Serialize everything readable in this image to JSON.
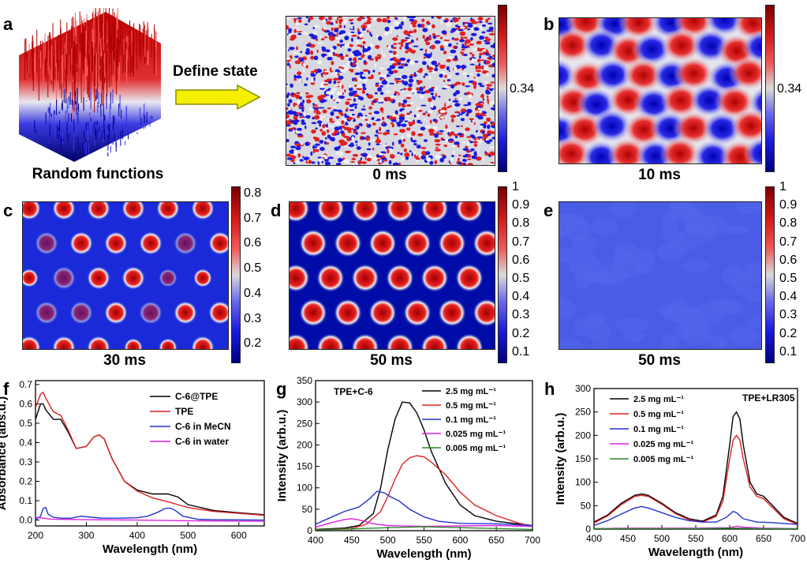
{
  "panel_labels": {
    "a": "a",
    "b": "b",
    "c": "c",
    "d": "d",
    "e": "e",
    "f": "f",
    "g": "g",
    "h": "h"
  },
  "panel_a": {
    "surface_caption": "Random functions",
    "arrow_label": "Define state",
    "map_caption": "0 ms",
    "colorbar_label": "0.34"
  },
  "panel_b": {
    "caption": "10 ms",
    "colorbar_label": "0.34"
  },
  "panel_c": {
    "caption": "30 ms",
    "colorbar_ticks": [
      "0.8",
      "0.7",
      "0.6",
      "0.5",
      "0.4",
      "0.3",
      "0.2"
    ]
  },
  "panel_d": {
    "caption": "50 ms",
    "colorbar_ticks": [
      "1",
      "0.9",
      "0.8",
      "0.7",
      "0.6",
      "0.5",
      "0.4",
      "0.3",
      "0.2",
      "0.1"
    ]
  },
  "panel_e": {
    "caption": "50 ms",
    "colorbar_ticks": [
      "1",
      "0.9",
      "0.8",
      "0.7",
      "0.6",
      "0.5",
      "0.4",
      "0.3",
      "0.2",
      "0.1"
    ]
  },
  "chart_data": [
    {
      "id": "f",
      "type": "line",
      "xlabel": "Wavelength (nm)",
      "ylabel": "Absorbance (abs.u.)",
      "xlim": [
        200,
        650
      ],
      "ylim": [
        -0.03,
        0.72
      ],
      "xticks": [
        200,
        300,
        400,
        500,
        600
      ],
      "yticks": [
        0.0,
        0.1,
        0.2,
        0.3,
        0.4,
        0.5,
        0.6,
        0.7
      ],
      "ytick_labels": [
        "0.0",
        "0.1",
        "0.2",
        "0.3",
        "0.4",
        "0.5",
        "0.6",
        "0.7"
      ],
      "legend_position": "top-right",
      "series": [
        {
          "name": "C-6@TPE",
          "color": "#000000",
          "x": [
            200,
            210,
            215,
            220,
            235,
            250,
            265,
            280,
            300,
            315,
            325,
            335,
            350,
            375,
            400,
            430,
            460,
            480,
            500,
            550,
            600,
            650
          ],
          "y": [
            0.52,
            0.6,
            0.6,
            0.57,
            0.52,
            0.52,
            0.45,
            0.37,
            0.38,
            0.43,
            0.44,
            0.42,
            0.32,
            0.2,
            0.155,
            0.135,
            0.135,
            0.12,
            0.08,
            0.05,
            0.038,
            0.028
          ]
        },
        {
          "name": "TPE",
          "color": "#dd2222",
          "x": [
            200,
            210,
            215,
            220,
            235,
            250,
            265,
            280,
            300,
            315,
            325,
            335,
            350,
            375,
            400,
            430,
            460,
            480,
            500,
            550,
            600,
            650
          ],
          "y": [
            0.58,
            0.65,
            0.66,
            0.63,
            0.56,
            0.54,
            0.46,
            0.37,
            0.38,
            0.43,
            0.44,
            0.42,
            0.32,
            0.2,
            0.15,
            0.115,
            0.095,
            0.08,
            0.065,
            0.045,
            0.035,
            0.025
          ]
        },
        {
          "name": "C-6 in MeCN",
          "color": "#2233cc",
          "x": [
            200,
            210,
            215,
            220,
            225,
            235,
            250,
            270,
            290,
            310,
            330,
            360,
            400,
            420,
            440,
            455,
            465,
            475,
            490,
            520,
            550,
            650
          ],
          "y": [
            0.0,
            0.02,
            0.06,
            0.065,
            0.03,
            0.015,
            0.01,
            0.01,
            0.02,
            0.015,
            0.01,
            0.01,
            0.012,
            0.02,
            0.04,
            0.06,
            0.062,
            0.05,
            0.02,
            0.004,
            0.002,
            0.0
          ]
        },
        {
          "name": "C-6 in water",
          "color": "#dd22dd",
          "x": [
            200,
            230,
            300,
            400,
            500,
            600,
            650
          ],
          "y": [
            0.015,
            0.005,
            0.002,
            0.0,
            -0.003,
            -0.005,
            -0.006
          ]
        }
      ]
    },
    {
      "id": "g",
      "type": "line",
      "xlabel": "Wavelength (nm)",
      "ylabel": "Intensity (arb.u.)",
      "xlim": [
        400,
        700
      ],
      "ylim": [
        0,
        350
      ],
      "xticks": [
        400,
        450,
        500,
        550,
        600,
        650,
        700
      ],
      "yticks": [
        0,
        50,
        100,
        150,
        200,
        250,
        300,
        350
      ],
      "annotation": "TPE+C-6",
      "legend_position": "top-right",
      "series": [
        {
          "name": "2.5 mg mL⁻¹",
          "color": "#000000",
          "x": [
            400,
            440,
            460,
            480,
            490,
            500,
            510,
            520,
            530,
            540,
            550,
            560,
            580,
            600,
            620,
            650,
            700
          ],
          "y": [
            3,
            6,
            12,
            40,
            100,
            190,
            260,
            300,
            298,
            275,
            235,
            185,
            110,
            60,
            35,
            22,
            12
          ]
        },
        {
          "name": "0.5 mg mL⁻¹",
          "color": "#dd2222",
          "x": [
            400,
            450,
            470,
            490,
            500,
            510,
            520,
            530,
            540,
            550,
            560,
            580,
            600,
            620,
            650,
            680,
            700
          ],
          "y": [
            2,
            5,
            15,
            45,
            80,
            120,
            155,
            170,
            175,
            172,
            160,
            130,
            90,
            60,
            35,
            18,
            10
          ]
        },
        {
          "name": "0.1 mg mL⁻¹",
          "color": "#2233cc",
          "x": [
            400,
            420,
            440,
            460,
            475,
            485,
            495,
            505,
            515,
            530,
            550,
            570,
            600,
            650,
            700
          ],
          "y": [
            15,
            30,
            45,
            55,
            75,
            92,
            88,
            78,
            70,
            50,
            32,
            22,
            17,
            16,
            12
          ]
        },
        {
          "name": "0.025 mg mL⁻¹",
          "color": "#dd22dd",
          "x": [
            400,
            420,
            440,
            450,
            460,
            480,
            500,
            550,
            600,
            650,
            700
          ],
          "y": [
            8,
            18,
            26,
            28,
            25,
            16,
            12,
            10,
            11,
            12,
            10
          ]
        },
        {
          "name": "0.005 mg mL⁻¹",
          "color": "#2a8a2a",
          "x": [
            400,
            450,
            500,
            550,
            600,
            650,
            700
          ],
          "y": [
            2,
            4,
            7,
            9,
            7,
            5,
            3
          ]
        }
      ]
    },
    {
      "id": "h",
      "type": "line",
      "xlabel": "Wavelength (nm)",
      "ylabel": "Intensity (arb.u.)",
      "xlim": [
        400,
        700
      ],
      "ylim": [
        0,
        300
      ],
      "xticks": [
        400,
        450,
        500,
        550,
        600,
        650,
        700
      ],
      "yticks": [
        0,
        50,
        100,
        150,
        200,
        250,
        300
      ],
      "annotation": "TPE+LR305",
      "legend_position": "top-left",
      "series": [
        {
          "name": "2.5 mg mL⁻¹",
          "color": "#000000",
          "x": [
            400,
            420,
            440,
            460,
            470,
            480,
            500,
            520,
            540,
            560,
            580,
            590,
            600,
            605,
            610,
            615,
            620,
            630,
            640,
            650,
            660,
            680,
            700
          ],
          "y": [
            15,
            30,
            55,
            72,
            75,
            72,
            55,
            35,
            22,
            17,
            30,
            70,
            180,
            240,
            250,
            235,
            180,
            100,
            75,
            70,
            55,
            25,
            12
          ]
        },
        {
          "name": "0.5 mg mL⁻¹",
          "color": "#dd2222",
          "x": [
            400,
            420,
            440,
            460,
            470,
            480,
            500,
            520,
            540,
            560,
            580,
            590,
            600,
            605,
            610,
            615,
            620,
            630,
            640,
            650,
            660,
            680,
            700
          ],
          "y": [
            13,
            28,
            52,
            70,
            72,
            70,
            53,
            33,
            20,
            15,
            27,
            60,
            150,
            190,
            200,
            190,
            150,
            90,
            70,
            65,
            50,
            22,
            10
          ]
        },
        {
          "name": "0.1 mg mL⁻¹",
          "color": "#2233cc",
          "x": [
            400,
            420,
            440,
            460,
            470,
            480,
            500,
            520,
            540,
            560,
            580,
            595,
            605,
            610,
            620,
            640,
            660,
            680,
            700
          ],
          "y": [
            8,
            18,
            32,
            45,
            48,
            45,
            35,
            25,
            18,
            15,
            15,
            25,
            38,
            35,
            22,
            15,
            14,
            12,
            10
          ]
        },
        {
          "name": "0.025 mg mL⁻¹",
          "color": "#dd22dd",
          "x": [
            400,
            450,
            500,
            550,
            600,
            610,
            620,
            650,
            700
          ],
          "y": [
            1,
            2,
            2,
            2,
            3,
            6,
            4,
            2,
            1
          ]
        },
        {
          "name": "0.005 mg mL⁻¹",
          "color": "#2a8a2a",
          "x": [
            400,
            450,
            500,
            550,
            600,
            650,
            700
          ],
          "y": [
            1,
            1,
            1,
            1,
            2,
            1,
            1
          ]
        }
      ]
    }
  ]
}
